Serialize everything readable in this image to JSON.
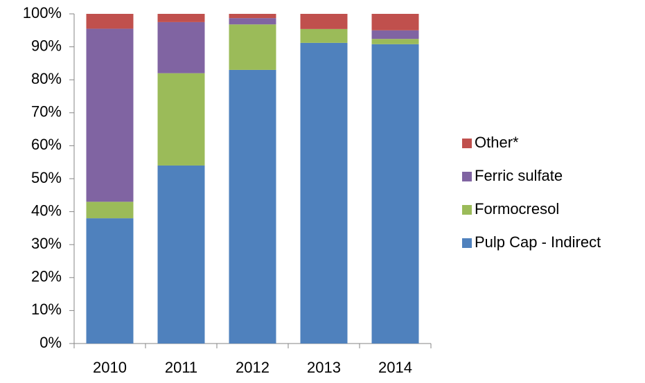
{
  "chart_data": {
    "type": "stacked_bar",
    "categories": [
      "2010",
      "2011",
      "2012",
      "2013",
      "2014"
    ],
    "series": [
      {
        "name": "Pulp Cap - Indirect",
        "color": "#4f81bd",
        "values": [
          38,
          54,
          83,
          91.2,
          90.8
        ]
      },
      {
        "name": "Formocresol",
        "color": "#9bbb59",
        "values": [
          5,
          28,
          13.8,
          4.2,
          1.6
        ]
      },
      {
        "name": "Ferric sulfate",
        "color": "#8064a2",
        "values": [
          52.5,
          15.5,
          1.9,
          0,
          2.6
        ]
      },
      {
        "name": "Other*",
        "color": "#c0504d",
        "values": [
          4.5,
          2.5,
          1.3,
          4.6,
          5
        ]
      }
    ],
    "ylim": [
      0,
      100
    ],
    "yticks": [
      {
        "value": 0,
        "label": "0%"
      },
      {
        "value": 10,
        "label": "10%"
      },
      {
        "value": 20,
        "label": "20%"
      },
      {
        "value": 30,
        "label": "30%"
      },
      {
        "value": 40,
        "label": "40%"
      },
      {
        "value": 50,
        "label": "50%"
      },
      {
        "value": 60,
        "label": "60%"
      },
      {
        "value": 70,
        "label": "70%"
      },
      {
        "value": 80,
        "label": "80%"
      },
      {
        "value": 90,
        "label": "90%"
      },
      {
        "value": 100,
        "label": "100%"
      }
    ],
    "legend": "right"
  }
}
